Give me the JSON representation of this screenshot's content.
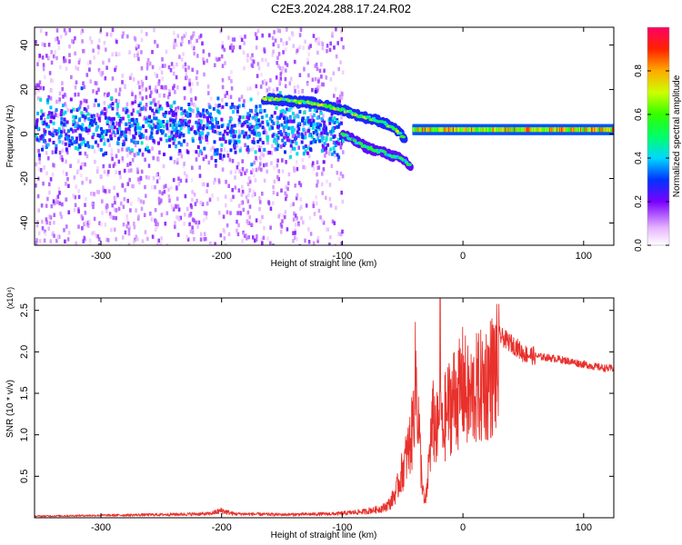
{
  "title": "C2E3.2024.288.17.24.R02",
  "chart_data": [
    {
      "type": "heatmap",
      "name": "spectrogram",
      "xlabel": "Height of straight line (km)",
      "ylabel": "Frequency (Hz)",
      "xlim": [
        -355,
        125
      ],
      "ylim": [
        -50,
        48
      ],
      "xticks": [
        -300,
        -200,
        -100,
        0,
        100
      ],
      "yticks": [
        -40,
        -20,
        0,
        20,
        40
      ],
      "colorbar": {
        "label": "Normalized spectral amplitude",
        "range": [
          0,
          1
        ],
        "ticks": [
          0.0,
          0.2,
          0.4,
          0.6,
          0.8
        ],
        "tick_labels": [
          "0.0",
          "0.2",
          "0.4",
          "0.6",
          "0.8"
        ]
      },
      "features": [
        {
          "name": "broadband-noise",
          "x_range": [
            -355,
            -100
          ],
          "freq_range": [
            -50,
            48
          ],
          "amplitude": 0.1
        },
        {
          "name": "central-band",
          "x_range": [
            -355,
            -100
          ],
          "center_freq": 4,
          "amplitude": 0.3
        },
        {
          "name": "upper-branch",
          "x": [
            -165,
            -125,
            -100,
            -85,
            -70,
            -58,
            -48
          ],
          "freq": [
            16,
            14,
            11,
            8,
            6,
            3,
            -2
          ],
          "amplitude": 0.55
        },
        {
          "name": "lower-branch",
          "x": [
            -100,
            -80,
            -62,
            -48,
            -43
          ],
          "freq": [
            0,
            -6,
            -9,
            -12,
            -15
          ],
          "amplitude": 0.45
        },
        {
          "name": "carrier-line",
          "x_range": [
            -42,
            125
          ],
          "freq": 2,
          "amplitude": 0.75
        }
      ]
    },
    {
      "type": "line",
      "name": "snr",
      "xlabel": "Height of straight line (km)",
      "ylabel": "SNR (10 * v/v)",
      "y_multiplier": "(x10⁴)",
      "xlim": [
        -355,
        125
      ],
      "ylim": [
        0,
        2.65
      ],
      "xticks": [
        -300,
        -200,
        -100,
        0,
        100
      ],
      "yticks": [
        0.5,
        1.0,
        1.5,
        2.0,
        2.5
      ],
      "ytick_labels": [
        "0.5",
        "1.0",
        "1.5",
        "2.0",
        "2.5"
      ],
      "color": "#e8312c",
      "x": [
        -355,
        -300,
        -250,
        -210,
        -200,
        -190,
        -150,
        -105,
        -80,
        -65,
        -60,
        -55,
        -50,
        -45,
        -42,
        -40,
        -39,
        -37,
        -35,
        -32,
        -30,
        -28,
        -25,
        -22,
        -20,
        -19,
        -18,
        -17,
        -15,
        -12,
        -8,
        -3,
        0,
        5,
        10,
        15,
        20,
        25,
        30,
        35,
        40,
        45,
        50,
        60,
        70,
        80,
        90,
        100,
        110,
        120,
        125
      ],
      "y": [
        0.02,
        0.03,
        0.04,
        0.05,
        0.09,
        0.05,
        0.04,
        0.05,
        0.08,
        0.15,
        0.22,
        0.4,
        0.7,
        1.0,
        1.25,
        1.9,
        2.07,
        1.5,
        0.8,
        0.2,
        0.35,
        0.9,
        1.4,
        1.3,
        1.2,
        2.65,
        1.5,
        1.2,
        1.45,
        1.6,
        1.75,
        1.8,
        1.95,
        1.7,
        1.85,
        1.9,
        2.0,
        2.1,
        2.2,
        2.15,
        2.1,
        2.05,
        1.98,
        1.95,
        1.93,
        1.91,
        1.88,
        1.85,
        1.82,
        1.8,
        1.8
      ]
    }
  ]
}
